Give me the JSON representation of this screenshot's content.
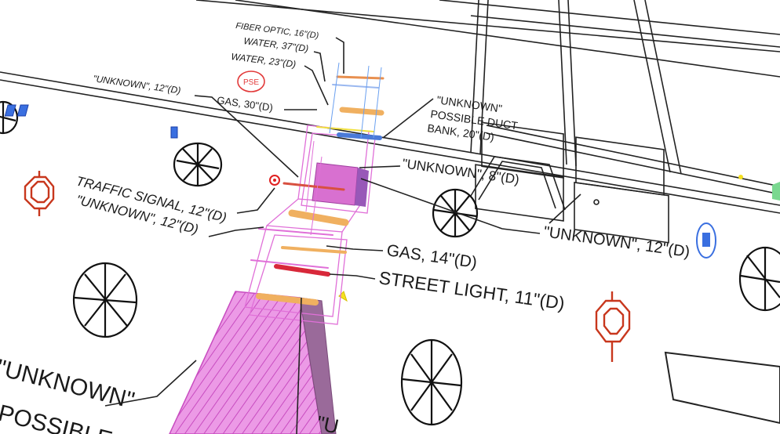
{
  "scene": {
    "labels": {
      "fiber_optic": "FIBER OPTIC, 16\"(D)",
      "water_37": "WATER, 37\"(D)",
      "water_23": "WATER, 23\"(D)",
      "pse": "PSE",
      "gas_30": "GAS, 30\"(D)",
      "unknown_12_top": "\"UNKNOWN\", 12\"(D)",
      "duct_bank_line1": "\"UNKNOWN\"",
      "duct_bank_line2": "POSSIBLE DUCT",
      "duct_bank_line3": "BANK, 20\"(D)",
      "unknown_8": "\"UNKNOWN\", 8\"(D)",
      "traffic_signal": "TRAFFIC SIGNAL, 12\"(D)",
      "unknown_12_left": "\"UNKNOWN\", 12\"(D)",
      "unknown_12_right": "\"UNKNOWN\", 12\"(D)",
      "gas_14": "GAS, 14\"(D)",
      "street_light": "STREET LIGHT, 11\"(D)",
      "unknown_bottom_line1": "\"UNKNOWN\"",
      "unknown_bottom_line2": "POSSIBLE",
      "unknown_bottom_cut": "\"U"
    },
    "colors": {
      "utility_magenta": "#e070d8",
      "gas_orange": "#f0b060",
      "water_blue": "#4a7ad8",
      "pse_red": "#e23a3a",
      "traffic_signal_red": "#c8371d",
      "street_light_red": "#d8283a",
      "fiber_optic_blue": "#6aa0f0"
    },
    "icons": [
      "manhole-icon",
      "traffic-signal-pole-icon",
      "catch-basin-icon",
      "fire-hydrant-icon"
    ]
  }
}
